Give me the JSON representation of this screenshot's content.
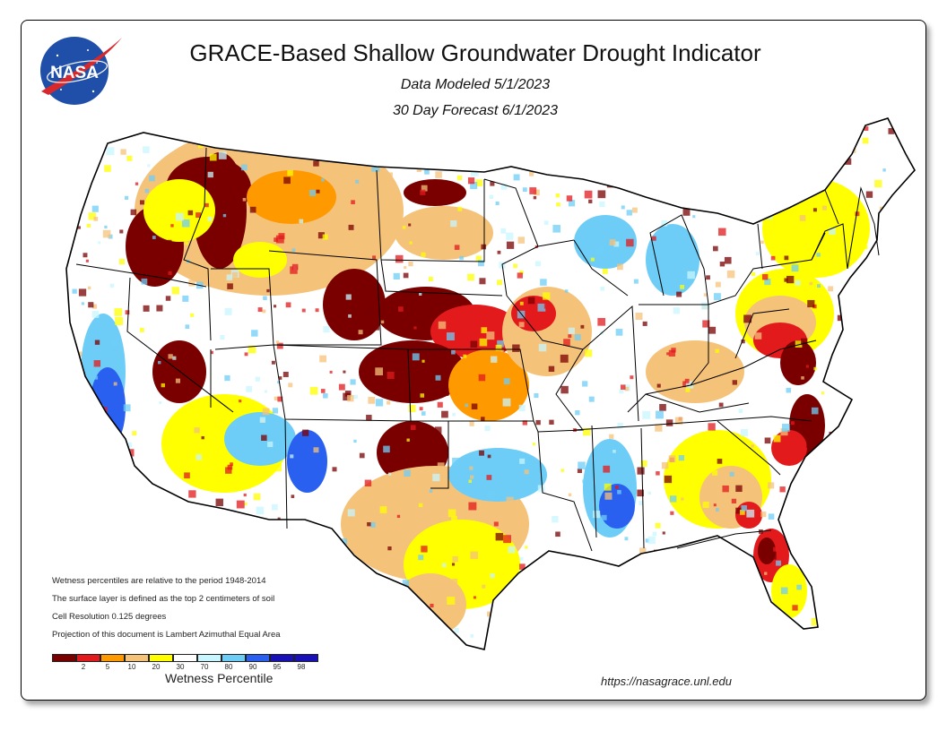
{
  "header": {
    "logo_text": "NASA",
    "title": "GRACE-Based Shallow Groundwater Drought Indicator",
    "subtitle_modeled": "Data Modeled 5/1/2023",
    "subtitle_forecast": "30 Day Forecast 6/1/2023"
  },
  "notes": [
    "Wetness percentiles are relative to the period 1948-2014",
    "The surface layer is defined as the top 2 centimeters of soil",
    "Cell Resolution 0.125 degrees",
    "Projection of this document is Lambert Azimuthal Equal Area"
  ],
  "legend": {
    "title": "Wetness Percentile",
    "ticks": [
      "2",
      "5",
      "10",
      "20",
      "30",
      "70",
      "80",
      "90",
      "95",
      "98"
    ],
    "colors": [
      "#7a0000",
      "#e31a1c",
      "#ff9900",
      "#f5c27a",
      "#ffff00",
      "#ffffff",
      "#c8f5ff",
      "#6ecdf7",
      "#2a60f0",
      "#1a10b8"
    ]
  },
  "footer": {
    "url": "https://nasagrace.unl.edu"
  },
  "map_colors": {
    "dark_red": "#7a0000",
    "red": "#e31a1c",
    "orange": "#ff9900",
    "tan": "#f5c27a",
    "yellow": "#ffff00",
    "light_blue": "#c8f5ff",
    "sky_blue": "#6ecdf7",
    "blue": "#2a60f0",
    "dark_blue": "#1a10b8",
    "boundary": "#000000"
  }
}
